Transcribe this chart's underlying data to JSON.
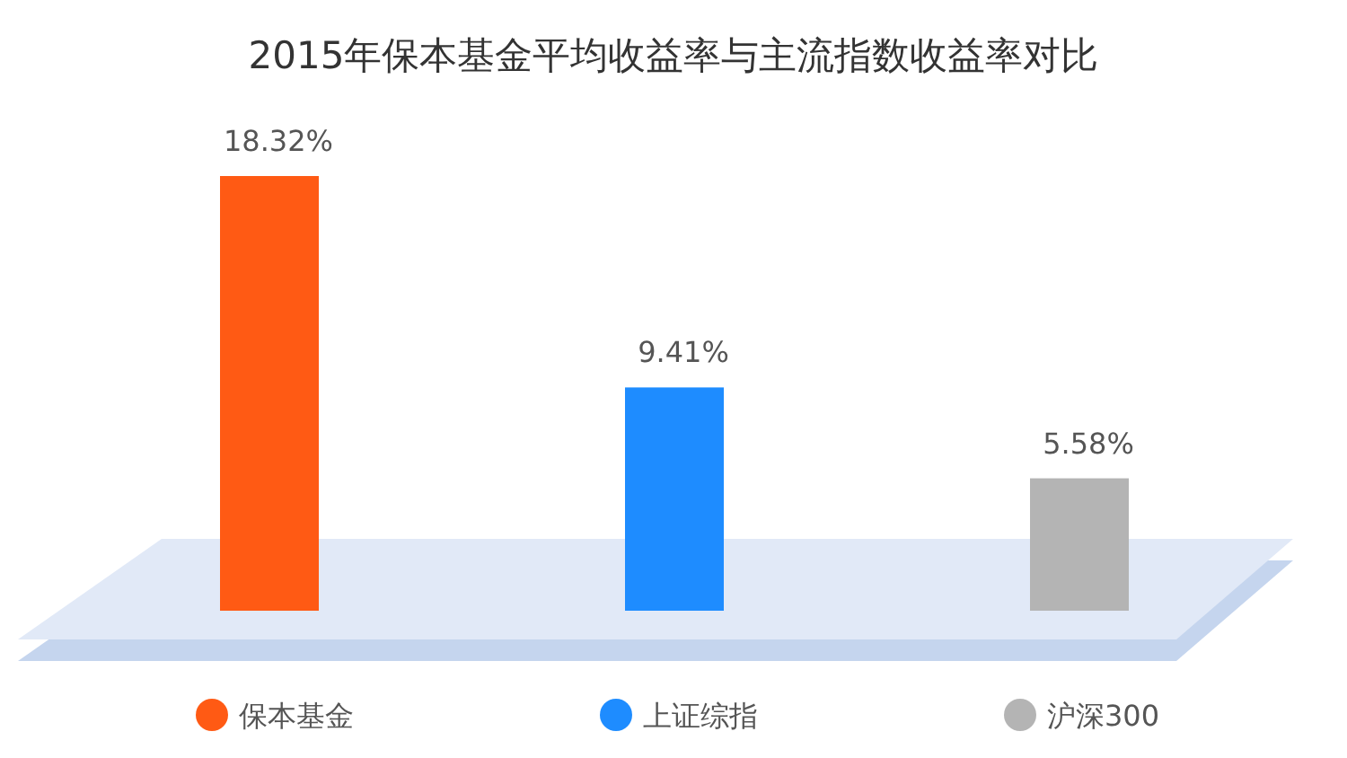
{
  "chart_data": {
    "type": "bar",
    "title": "2015年保本基金平均收益率与主流指数收益率对比",
    "categories": [
      "保本基金",
      "上证综指",
      "沪深300"
    ],
    "values": [
      18.32,
      9.41,
      5.58
    ],
    "value_labels": [
      "18.32%",
      "9.41%",
      "5.58%"
    ],
    "colors": [
      "#ff5a14",
      "#1e8cff",
      "#b4b4b4"
    ]
  }
}
